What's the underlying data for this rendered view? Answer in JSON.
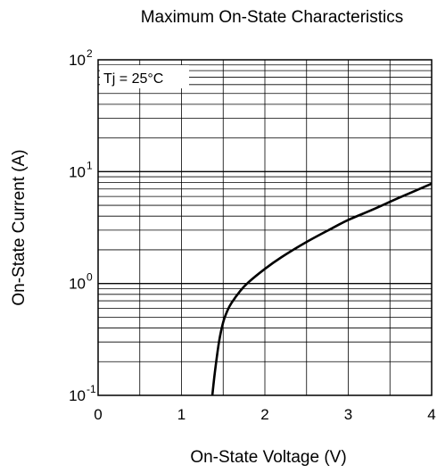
{
  "chart_data": {
    "type": "line",
    "title": "Maximum On-State Characteristics",
    "xlabel": "On-State Voltage  (V)",
    "ylabel": "On-State Current  (A)",
    "xlim": [
      0,
      4
    ],
    "ylim": [
      0.1,
      100
    ],
    "yscale": "log",
    "grid": true,
    "x_ticks": [
      {
        "value": 0,
        "label": "0"
      },
      {
        "value": 1,
        "label": "1"
      },
      {
        "value": 2,
        "label": "2"
      },
      {
        "value": 3,
        "label": "3"
      },
      {
        "value": 4,
        "label": "4"
      }
    ],
    "y_ticks": [
      {
        "value": 0.1,
        "base": "10",
        "exp": "-1"
      },
      {
        "value": 1,
        "base": "10",
        "exp": "0"
      },
      {
        "value": 10,
        "base": "10",
        "exp": "1"
      },
      {
        "value": 100,
        "base": "10",
        "exp": "2"
      }
    ],
    "annotation": "Tj = 25°C",
    "series": [
      {
        "x": [
          1.37,
          1.4,
          1.45,
          1.5,
          1.55,
          1.6,
          1.7,
          1.8,
          2.0,
          2.2,
          2.5,
          2.8,
          3.0,
          3.3,
          3.6,
          4.0
        ],
        "y": [
          0.1,
          0.16,
          0.3,
          0.45,
          0.57,
          0.67,
          0.85,
          1.02,
          1.35,
          1.72,
          2.35,
          3.1,
          3.7,
          4.6,
          5.8,
          7.8
        ]
      }
    ]
  }
}
